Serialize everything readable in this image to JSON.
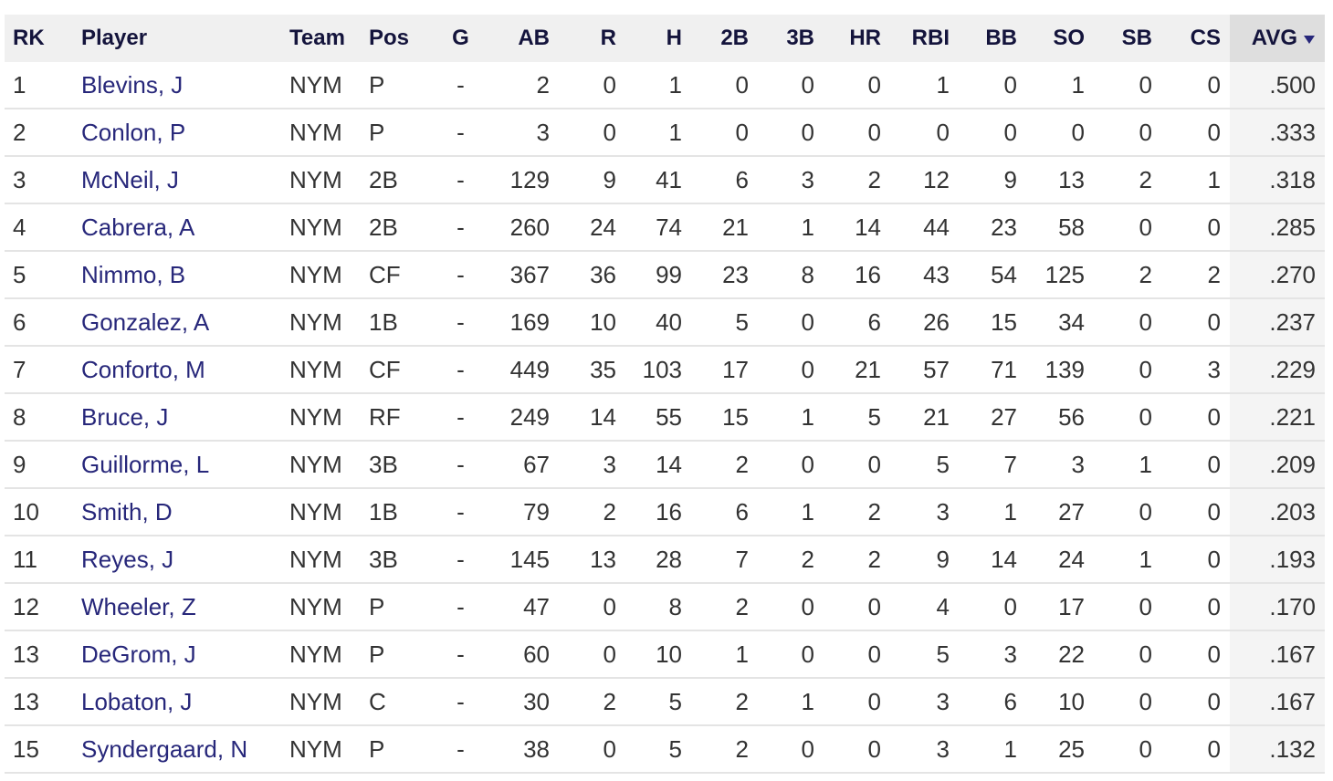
{
  "table": {
    "headers": [
      "RK",
      "Player",
      "Team",
      "Pos",
      "G",
      "AB",
      "R",
      "H",
      "2B",
      "3B",
      "HR",
      "RBI",
      "BB",
      "SO",
      "SB",
      "CS",
      "AVG"
    ],
    "rows": [
      [
        "1",
        "Blevins, J",
        "NYM",
        "P",
        "-",
        "2",
        "0",
        "1",
        "0",
        "0",
        "0",
        "1",
        "0",
        "1",
        "0",
        "0",
        ".500"
      ],
      [
        "2",
        "Conlon, P",
        "NYM",
        "P",
        "-",
        "3",
        "0",
        "1",
        "0",
        "0",
        "0",
        "0",
        "0",
        "0",
        "0",
        "0",
        ".333"
      ],
      [
        "3",
        "McNeil, J",
        "NYM",
        "2B",
        "-",
        "129",
        "9",
        "41",
        "6",
        "3",
        "2",
        "12",
        "9",
        "13",
        "2",
        "1",
        ".318"
      ],
      [
        "4",
        "Cabrera, A",
        "NYM",
        "2B",
        "-",
        "260",
        "24",
        "74",
        "21",
        "1",
        "14",
        "44",
        "23",
        "58",
        "0",
        "0",
        ".285"
      ],
      [
        "5",
        "Nimmo, B",
        "NYM",
        "CF",
        "-",
        "367",
        "36",
        "99",
        "23",
        "8",
        "16",
        "43",
        "54",
        "125",
        "2",
        "2",
        ".270"
      ],
      [
        "6",
        "Gonzalez, A",
        "NYM",
        "1B",
        "-",
        "169",
        "10",
        "40",
        "5",
        "0",
        "6",
        "26",
        "15",
        "34",
        "0",
        "0",
        ".237"
      ],
      [
        "7",
        "Conforto, M",
        "NYM",
        "CF",
        "-",
        "449",
        "35",
        "103",
        "17",
        "0",
        "21",
        "57",
        "71",
        "139",
        "0",
        "3",
        ".229"
      ],
      [
        "8",
        "Bruce, J",
        "NYM",
        "RF",
        "-",
        "249",
        "14",
        "55",
        "15",
        "1",
        "5",
        "21",
        "27",
        "56",
        "0",
        "0",
        ".221"
      ],
      [
        "9",
        "Guillorme, L",
        "NYM",
        "3B",
        "-",
        "67",
        "3",
        "14",
        "2",
        "0",
        "0",
        "5",
        "7",
        "3",
        "1",
        "0",
        ".209"
      ],
      [
        "10",
        "Smith, D",
        "NYM",
        "1B",
        "-",
        "79",
        "2",
        "16",
        "6",
        "1",
        "2",
        "3",
        "1",
        "27",
        "0",
        "0",
        ".203"
      ],
      [
        "11",
        "Reyes, J",
        "NYM",
        "3B",
        "-",
        "145",
        "13",
        "28",
        "7",
        "2",
        "2",
        "9",
        "14",
        "24",
        "1",
        "0",
        ".193"
      ],
      [
        "12",
        "Wheeler, Z",
        "NYM",
        "P",
        "-",
        "47",
        "0",
        "8",
        "2",
        "0",
        "0",
        "4",
        "0",
        "17",
        "0",
        "0",
        ".170"
      ],
      [
        "13",
        "DeGrom, J",
        "NYM",
        "P",
        "-",
        "60",
        "0",
        "10",
        "1",
        "0",
        "0",
        "5",
        "3",
        "22",
        "0",
        "0",
        ".167"
      ],
      [
        "13",
        "Lobaton, J",
        "NYM",
        "C",
        "-",
        "30",
        "2",
        "5",
        "2",
        "1",
        "0",
        "3",
        "6",
        "10",
        "0",
        "0",
        ".167"
      ],
      [
        "15",
        "Syndergaard, N",
        "NYM",
        "P",
        "-",
        "38",
        "0",
        "5",
        "2",
        "0",
        "0",
        "3",
        "1",
        "25",
        "0",
        "0",
        ".132"
      ]
    ]
  }
}
